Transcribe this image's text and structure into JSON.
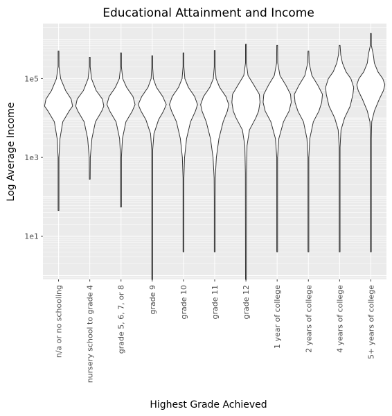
{
  "chart_data": {
    "type": "violin",
    "title": "Educational Attainment and Income",
    "xlabel": "Highest Grade Achieved",
    "ylabel": "Log Average Income",
    "y_scale": "log10",
    "ylim": [
      0.8,
      2500000
    ],
    "y_ticks": [
      {
        "value": 10,
        "label": "1e1"
      },
      {
        "value": 1000,
        "label": "1e3"
      },
      {
        "value": 100000,
        "label": "1e5"
      }
    ],
    "grid": true,
    "legend": "none",
    "categories": [
      "n/a or no schooling",
      "nursery school to grade 4",
      "grade 5, 6, 7, or 8",
      "grade 9",
      "grade 10",
      "grade 11",
      "grade 12",
      "1 year of college",
      "2 years of college",
      "4 years of college",
      "5+ years of college"
    ],
    "series": [
      {
        "min": 45,
        "max": 500000,
        "median": 20000,
        "profile": [
          [
            45,
            0.005
          ],
          [
            1000,
            0.02
          ],
          [
            3000,
            0.1
          ],
          [
            8000,
            0.3
          ],
          [
            15000,
            0.75
          ],
          [
            20000,
            1.0
          ],
          [
            30000,
            0.9
          ],
          [
            50000,
            0.5
          ],
          [
            100000,
            0.15
          ],
          [
            200000,
            0.03
          ],
          [
            500000,
            0.005
          ]
        ]
      },
      {
        "min": 280,
        "max": 350000,
        "median": 18000,
        "profile": [
          [
            280,
            0.005
          ],
          [
            1000,
            0.04
          ],
          [
            3000,
            0.15
          ],
          [
            8000,
            0.4
          ],
          [
            15000,
            0.85
          ],
          [
            20000,
            1.0
          ],
          [
            30000,
            0.9
          ],
          [
            50000,
            0.45
          ],
          [
            100000,
            0.12
          ],
          [
            200000,
            0.03
          ],
          [
            350000,
            0.005
          ]
        ]
      },
      {
        "min": 55,
        "max": 450000,
        "median": 20000,
        "profile": [
          [
            55,
            0.005
          ],
          [
            1000,
            0.02
          ],
          [
            3000,
            0.1
          ],
          [
            8000,
            0.35
          ],
          [
            15000,
            0.8
          ],
          [
            22000,
            1.0
          ],
          [
            35000,
            0.85
          ],
          [
            60000,
            0.4
          ],
          [
            100000,
            0.12
          ],
          [
            200000,
            0.03
          ],
          [
            450000,
            0.005
          ]
        ]
      },
      {
        "min": 0.8,
        "max": 380000,
        "median": 20000,
        "profile": [
          [
            0.8,
            0.005
          ],
          [
            200,
            0.005
          ],
          [
            1500,
            0.02
          ],
          [
            4000,
            0.12
          ],
          [
            9000,
            0.45
          ],
          [
            15000,
            0.8
          ],
          [
            22000,
            1.0
          ],
          [
            35000,
            0.75
          ],
          [
            60000,
            0.3
          ],
          [
            100000,
            0.08
          ],
          [
            200000,
            0.02
          ],
          [
            380000,
            0.005
          ]
        ]
      },
      {
        "min": 4,
        "max": 450000,
        "median": 20000,
        "profile": [
          [
            4,
            0.005
          ],
          [
            150,
            0.01
          ],
          [
            300,
            0.03
          ],
          [
            1000,
            0.08
          ],
          [
            3000,
            0.22
          ],
          [
            8000,
            0.5
          ],
          [
            15000,
            0.85
          ],
          [
            22000,
            1.0
          ],
          [
            35000,
            0.8
          ],
          [
            60000,
            0.35
          ],
          [
            100000,
            0.1
          ],
          [
            200000,
            0.02
          ],
          [
            450000,
            0.005
          ]
        ]
      },
      {
        "min": 4,
        "max": 520000,
        "median": 20000,
        "profile": [
          [
            4,
            0.005
          ],
          [
            80,
            0.01
          ],
          [
            300,
            0.04
          ],
          [
            1000,
            0.12
          ],
          [
            3000,
            0.3
          ],
          [
            8000,
            0.6
          ],
          [
            15000,
            0.9
          ],
          [
            22000,
            1.0
          ],
          [
            35000,
            0.8
          ],
          [
            60000,
            0.35
          ],
          [
            100000,
            0.1
          ],
          [
            200000,
            0.02
          ],
          [
            520000,
            0.005
          ]
        ]
      },
      {
        "min": 0.8,
        "max": 750000,
        "median": 30000,
        "profile": [
          [
            0.8,
            0.005
          ],
          [
            400,
            0.04
          ],
          [
            2000,
            0.08
          ],
          [
            5000,
            0.25
          ],
          [
            10000,
            0.7
          ],
          [
            15000,
            0.9
          ],
          [
            25000,
            1.0
          ],
          [
            40000,
            0.95
          ],
          [
            70000,
            0.55
          ],
          [
            120000,
            0.15
          ],
          [
            250000,
            0.03
          ],
          [
            750000,
            0.005
          ]
        ]
      },
      {
        "min": 4,
        "max": 700000,
        "median": 30000,
        "profile": [
          [
            4,
            0.005
          ],
          [
            500,
            0.01
          ],
          [
            1000,
            0.03
          ],
          [
            3000,
            0.12
          ],
          [
            8000,
            0.45
          ],
          [
            15000,
            0.85
          ],
          [
            25000,
            1.0
          ],
          [
            40000,
            0.95
          ],
          [
            70000,
            0.6
          ],
          [
            120000,
            0.2
          ],
          [
            250000,
            0.04
          ],
          [
            700000,
            0.005
          ]
        ]
      },
      {
        "min": 4,
        "max": 500000,
        "median": 35000,
        "profile": [
          [
            4,
            0.005
          ],
          [
            1000,
            0.02
          ],
          [
            3000,
            0.1
          ],
          [
            8000,
            0.35
          ],
          [
            15000,
            0.75
          ],
          [
            25000,
            0.95
          ],
          [
            40000,
            1.0
          ],
          [
            70000,
            0.65
          ],
          [
            120000,
            0.25
          ],
          [
            250000,
            0.05
          ],
          [
            500000,
            0.005
          ]
        ]
      },
      {
        "min": 4,
        "max": 700000,
        "median": 50000,
        "profile": [
          [
            4,
            0.005
          ],
          [
            1800,
            0.01
          ],
          [
            5000,
            0.1
          ],
          [
            10000,
            0.35
          ],
          [
            20000,
            0.75
          ],
          [
            40000,
            0.95
          ],
          [
            60000,
            1.0
          ],
          [
            100000,
            0.8
          ],
          [
            150000,
            0.45
          ],
          [
            250000,
            0.2
          ],
          [
            400000,
            0.08
          ],
          [
            700000,
            0.005
          ]
        ]
      },
      {
        "min": 4,
        "max": 1400000,
        "median": 60000,
        "profile": [
          [
            4,
            0.005
          ],
          [
            3000,
            0.01
          ],
          [
            8000,
            0.06
          ],
          [
            15000,
            0.25
          ],
          [
            30000,
            0.6
          ],
          [
            50000,
            0.9
          ],
          [
            70000,
            1.0
          ],
          [
            100000,
            0.85
          ],
          [
            150000,
            0.5
          ],
          [
            250000,
            0.25
          ],
          [
            350000,
            0.2
          ],
          [
            450000,
            0.15
          ],
          [
            700000,
            0.03
          ],
          [
            1400000,
            0.005
          ]
        ]
      }
    ]
  }
}
